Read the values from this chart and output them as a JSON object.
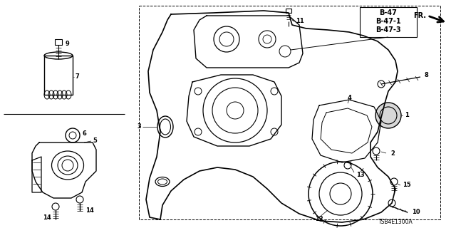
{
  "bg_color": "#ffffff",
  "line_color": "#000000",
  "text_color": "#000000",
  "ref_codes": [
    "B-47",
    "B-47-1",
    "B-47-3"
  ],
  "diagram_code": "TSB4E1300A",
  "fig_w": 6.4,
  "fig_h": 3.2,
  "dpi": 100
}
